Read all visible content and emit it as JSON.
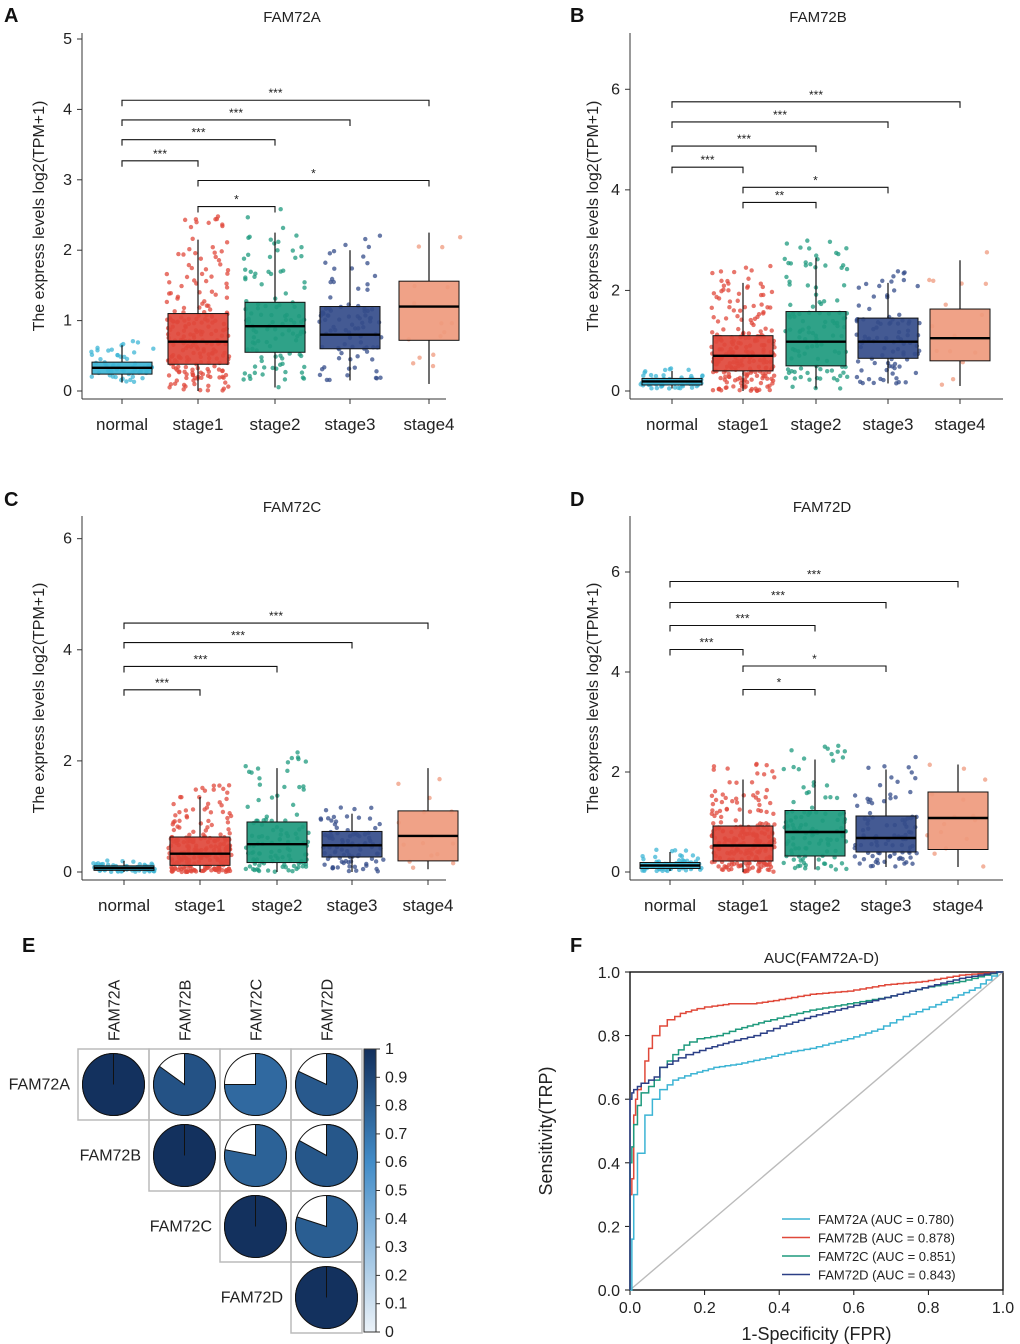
{
  "chart_data": [
    {
      "type": "box",
      "panel": "A",
      "title": "FAM72A",
      "ylabel": "The express levels log2(TPM+1)",
      "ylim": [
        0,
        5
      ],
      "yticks": [
        "0",
        "1",
        "2",
        "3",
        "4",
        "5"
      ],
      "categories": [
        "normal",
        "stage1",
        "stage2",
        "stage3",
        "stage4"
      ],
      "colors": [
        "#3db5d6",
        "#e0483b",
        "#1d9a7e",
        "#344c8a",
        "#ef9a7d"
      ],
      "box": [
        {
          "lo": 0.12,
          "q1": 0.24,
          "med": 0.33,
          "q3": 0.41,
          "hi": 0.65
        },
        {
          "lo": 0.0,
          "q1": 0.38,
          "med": 0.7,
          "q3": 1.1,
          "hi": 2.15
        },
        {
          "lo": 0.05,
          "q1": 0.55,
          "med": 0.92,
          "q3": 1.26,
          "hi": 2.25
        },
        {
          "lo": 0.15,
          "q1": 0.6,
          "med": 0.8,
          "q3": 1.2,
          "hi": 2.0
        },
        {
          "lo": 0.1,
          "q1": 0.72,
          "med": 1.2,
          "q3": 1.56,
          "hi": 2.25
        }
      ],
      "npts": [
        60,
        220,
        110,
        90,
        15
      ],
      "sig": [
        {
          "from": 0,
          "to": 1,
          "label": "***",
          "y": 3.27
        },
        {
          "from": 0,
          "to": 2,
          "label": "***",
          "y": 3.57
        },
        {
          "from": 0,
          "to": 3,
          "label": "***",
          "y": 3.85
        },
        {
          "from": 0,
          "to": 4,
          "label": "***",
          "y": 4.13
        },
        {
          "from": 1,
          "to": 2,
          "label": "*",
          "y": 2.62
        },
        {
          "from": 1,
          "to": 4,
          "label": "*",
          "y": 2.99
        }
      ]
    },
    {
      "type": "box",
      "panel": "B",
      "title": "FAM72B",
      "ylabel": "The express levels log2(TPM+1)",
      "ylim": [
        0,
        7
      ],
      "yticks": [
        "0",
        "2",
        "4",
        "6"
      ],
      "categories": [
        "normal",
        "stage1",
        "stage2",
        "stage3",
        "stage4"
      ],
      "colors": [
        "#3db5d6",
        "#e0483b",
        "#1d9a7e",
        "#344c8a",
        "#ef9a7d"
      ],
      "box": [
        {
          "lo": 0.05,
          "q1": 0.12,
          "med": 0.19,
          "q3": 0.25,
          "hi": 0.4
        },
        {
          "lo": 0.0,
          "q1": 0.4,
          "med": 0.7,
          "q3": 1.1,
          "hi": 2.15
        },
        {
          "lo": 0.05,
          "q1": 0.5,
          "med": 0.98,
          "q3": 1.58,
          "hi": 2.65
        },
        {
          "lo": 0.15,
          "q1": 0.65,
          "med": 0.98,
          "q3": 1.45,
          "hi": 2.15
        },
        {
          "lo": 0.1,
          "q1": 0.6,
          "med": 1.05,
          "q3": 1.63,
          "hi": 2.6
        }
      ],
      "npts": [
        60,
        220,
        110,
        90,
        15
      ],
      "sig": [
        {
          "from": 0,
          "to": 1,
          "label": "***",
          "y": 4.45
        },
        {
          "from": 0,
          "to": 2,
          "label": "***",
          "y": 4.87
        },
        {
          "from": 0,
          "to": 3,
          "label": "***",
          "y": 5.35
        },
        {
          "from": 0,
          "to": 4,
          "label": "***",
          "y": 5.75
        },
        {
          "from": 1,
          "to": 2,
          "label": "**",
          "y": 3.75
        },
        {
          "from": 1,
          "to": 3,
          "label": "*",
          "y": 4.05
        }
      ]
    },
    {
      "type": "box",
      "panel": "C",
      "title": "FAM72C",
      "ylabel": "The express levels log2(TPM+1)",
      "ylim": [
        0,
        6.3
      ],
      "yticks": [
        "0",
        "2",
        "4",
        "6"
      ],
      "categories": [
        "normal",
        "stage1",
        "stage2",
        "stage3",
        "stage4"
      ],
      "colors": [
        "#3db5d6",
        "#e0483b",
        "#1d9a7e",
        "#344c8a",
        "#ef9a7d"
      ],
      "box": [
        {
          "lo": 0.0,
          "q1": 0.03,
          "med": 0.07,
          "q3": 0.11,
          "hi": 0.2
        },
        {
          "lo": 0.0,
          "q1": 0.12,
          "med": 0.33,
          "q3": 0.63,
          "hi": 1.35
        },
        {
          "lo": 0.0,
          "q1": 0.17,
          "med": 0.5,
          "q3": 0.9,
          "hi": 1.87
        },
        {
          "lo": 0.0,
          "q1": 0.27,
          "med": 0.48,
          "q3": 0.73,
          "hi": 1.05
        },
        {
          "lo": 0.05,
          "q1": 0.2,
          "med": 0.65,
          "q3": 1.1,
          "hi": 1.87
        }
      ],
      "npts": [
        60,
        220,
        110,
        90,
        15
      ],
      "sig": [
        {
          "from": 0,
          "to": 1,
          "label": "***",
          "y": 3.28
        },
        {
          "from": 0,
          "to": 2,
          "label": "***",
          "y": 3.7
        },
        {
          "from": 0,
          "to": 3,
          "label": "***",
          "y": 4.13
        },
        {
          "from": 0,
          "to": 4,
          "label": "***",
          "y": 4.48
        }
      ]
    },
    {
      "type": "box",
      "panel": "D",
      "title": "FAM72D",
      "ylabel": "The express levels log2(TPM+1)",
      "ylim": [
        0,
        7
      ],
      "yticks": [
        "0",
        "2",
        "4",
        "6"
      ],
      "categories": [
        "normal",
        "stage1",
        "stage2",
        "stage3",
        "stage4"
      ],
      "colors": [
        "#3db5d6",
        "#e0483b",
        "#1d9a7e",
        "#344c8a",
        "#ef9a7d"
      ],
      "box": [
        {
          "lo": 0.02,
          "q1": 0.07,
          "med": 0.13,
          "q3": 0.19,
          "hi": 0.4
        },
        {
          "lo": 0.0,
          "q1": 0.22,
          "med": 0.53,
          "q3": 0.92,
          "hi": 1.85
        },
        {
          "lo": 0.05,
          "q1": 0.32,
          "med": 0.8,
          "q3": 1.23,
          "hi": 2.25
        },
        {
          "lo": 0.1,
          "q1": 0.4,
          "med": 0.68,
          "q3": 1.12,
          "hi": 2.05
        },
        {
          "lo": 0.1,
          "q1": 0.45,
          "med": 1.08,
          "q3": 1.6,
          "hi": 2.15
        }
      ],
      "npts": [
        60,
        220,
        110,
        90,
        15
      ],
      "sig": [
        {
          "from": 0,
          "to": 1,
          "label": "***",
          "y": 4.45
        },
        {
          "from": 0,
          "to": 2,
          "label": "***",
          "y": 4.93
        },
        {
          "from": 0,
          "to": 3,
          "label": "***",
          "y": 5.39
        },
        {
          "from": 0,
          "to": 4,
          "label": "***",
          "y": 5.81
        },
        {
          "from": 1,
          "to": 2,
          "label": "*",
          "y": 3.65
        },
        {
          "from": 1,
          "to": 3,
          "label": "*",
          "y": 4.12
        }
      ]
    },
    {
      "type": "heatmap",
      "panel": "E",
      "subtype": "correlation-pie-matrix",
      "labels": [
        "FAM72A",
        "FAM72B",
        "FAM72C",
        "FAM72D"
      ],
      "matrix": [
        [
          1.0,
          0.85,
          0.75,
          0.82
        ],
        [
          0.85,
          1.0,
          0.78,
          0.83
        ],
        [
          0.75,
          0.78,
          1.0,
          0.8
        ],
        [
          0.82,
          0.83,
          0.8,
          1.0
        ]
      ],
      "scale_ticks": [
        "0",
        "0.1",
        "0.2",
        "0.3",
        "0.4",
        "0.5",
        "0.6",
        "0.7",
        "0.8",
        "0.9",
        "1"
      ],
      "scale_range": [
        0,
        1
      ]
    },
    {
      "type": "line",
      "panel": "F",
      "title": "AUC(FAM72A-D)",
      "xlabel": "1-Specificity  (FPR)",
      "ylabel": "Sensitivity(TRP)",
      "xlim": [
        0,
        1
      ],
      "ylim": [
        0,
        1
      ],
      "xticks": [
        "0.0",
        "0.2",
        "0.4",
        "0.6",
        "0.8",
        "1.0"
      ],
      "yticks": [
        "0.0",
        "0.2",
        "0.4",
        "0.6",
        "0.8",
        "1.0"
      ],
      "series": [
        {
          "name": "FAM72A (AUC = 0.780)",
          "color": "#3cb4d4",
          "x": [
            0,
            0.005,
            0.01,
            0.01,
            0.02,
            0.02,
            0.04,
            0.04,
            0.06,
            0.08,
            0.1,
            0.13,
            0.18,
            0.24,
            0.3,
            0.38,
            0.45,
            0.5,
            0.6,
            0.68,
            0.75,
            0.82,
            0.88,
            0.94,
            1.0
          ],
          "y": [
            0,
            0,
            0.16,
            0.27,
            0.3,
            0.4,
            0.43,
            0.5,
            0.55,
            0.6,
            0.63,
            0.66,
            0.68,
            0.7,
            0.71,
            0.73,
            0.75,
            0.76,
            0.79,
            0.82,
            0.86,
            0.89,
            0.92,
            0.95,
            1.0
          ]
        },
        {
          "name": "FAM72B (AUC = 0.878)",
          "color": "#e0493a",
          "x": [
            0,
            0.005,
            0.01,
            0.01,
            0.015,
            0.02,
            0.03,
            0.04,
            0.05,
            0.06,
            0.08,
            0.1,
            0.12,
            0.15,
            0.18,
            0.22,
            0.28,
            0.34,
            0.4,
            0.5,
            0.6,
            0.7,
            0.8,
            0.9,
            1.0
          ],
          "y": [
            0,
            0.3,
            0.35,
            0.45,
            0.55,
            0.6,
            0.63,
            0.65,
            0.72,
            0.76,
            0.8,
            0.83,
            0.85,
            0.87,
            0.88,
            0.89,
            0.9,
            0.9,
            0.91,
            0.93,
            0.94,
            0.96,
            0.97,
            0.99,
            1.0
          ]
        },
        {
          "name": "FAM72C (AUC = 0.851)",
          "color": "#1f9a7d",
          "x": [
            0,
            0.005,
            0.01,
            0.02,
            0.03,
            0.05,
            0.08,
            0.1,
            0.13,
            0.16,
            0.2,
            0.25,
            0.3,
            0.36,
            0.43,
            0.5,
            0.6,
            0.7,
            0.8,
            0.9,
            1.0
          ],
          "y": [
            0,
            0.4,
            0.45,
            0.52,
            0.58,
            0.62,
            0.66,
            0.7,
            0.74,
            0.77,
            0.79,
            0.8,
            0.82,
            0.84,
            0.86,
            0.88,
            0.9,
            0.92,
            0.95,
            0.97,
            1.0
          ]
        },
        {
          "name": "FAM72D (AUC = 0.843)",
          "color": "#2b3f86",
          "x": [
            0,
            0.0,
            0.005,
            0.01,
            0.02,
            0.03,
            0.05,
            0.08,
            0.1,
            0.13,
            0.17,
            0.22,
            0.28,
            0.35,
            0.42,
            0.5,
            0.6,
            0.7,
            0.8,
            0.9,
            1.0
          ],
          "y": [
            0,
            0.57,
            0.6,
            0.62,
            0.63,
            0.64,
            0.65,
            0.67,
            0.7,
            0.72,
            0.74,
            0.76,
            0.78,
            0.8,
            0.83,
            0.86,
            0.89,
            0.92,
            0.95,
            0.98,
            1.0
          ]
        }
      ],
      "reference_line": {
        "x": [
          0,
          1
        ],
        "y": [
          0,
          1
        ],
        "color": "#bbbbbb"
      }
    }
  ],
  "panel_letters": [
    "A",
    "B",
    "C",
    "D",
    "E",
    "F"
  ]
}
